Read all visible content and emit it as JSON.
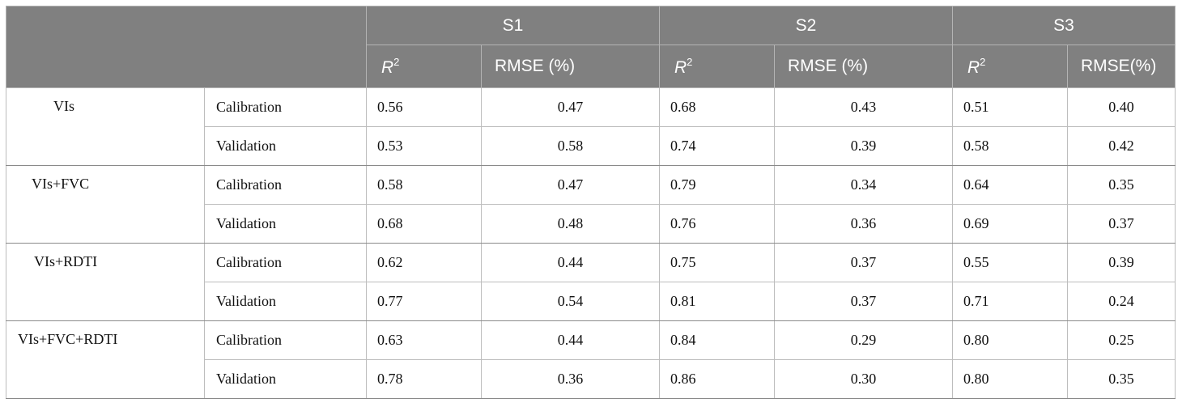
{
  "header": {
    "groups": [
      "S1",
      "S2",
      "S3"
    ],
    "subcols": [
      {
        "r2_base": "R",
        "r2_sup": "2",
        "rmse": "RMSE (%)"
      },
      {
        "r2_base": "R",
        "r2_sup": "2",
        "rmse": "RMSE (%)"
      },
      {
        "r2_base": "R",
        "r2_sup": "2",
        "rmse": "RMSE(%)"
      }
    ]
  },
  "rows": [
    {
      "model": "VIs",
      "phases": [
        {
          "phase": "Calibration",
          "values": [
            "0.56",
            "0.47",
            "0.68",
            "0.43",
            "0.51",
            "0.40"
          ]
        },
        {
          "phase": "Validation",
          "values": [
            "0.53",
            "0.58",
            "0.74",
            "0.39",
            "0.58",
            "0.42"
          ]
        }
      ]
    },
    {
      "model": "VIs+FVC",
      "phases": [
        {
          "phase": "Calibration",
          "values": [
            "0.58",
            "0.47",
            "0.79",
            "0.34",
            "0.64",
            "0.35"
          ]
        },
        {
          "phase": "Validation",
          "values": [
            "0.68",
            "0.48",
            "0.76",
            "0.36",
            "0.69",
            "0.37"
          ]
        }
      ]
    },
    {
      "model": "VIs+RDTI",
      "phases": [
        {
          "phase": "Calibration",
          "values": [
            "0.62",
            "0.44",
            "0.75",
            "0.37",
            "0.55",
            "0.39"
          ]
        },
        {
          "phase": "Validation",
          "values": [
            "0.77",
            "0.54",
            "0.81",
            "0.37",
            "0.71",
            "0.24"
          ]
        }
      ]
    },
    {
      "model": "VIs+FVC+RDTI",
      "phases": [
        {
          "phase": "Calibration",
          "values": [
            "0.63",
            "0.44",
            "0.84",
            "0.29",
            "0.80",
            "0.25"
          ]
        },
        {
          "phase": "Validation",
          "values": [
            "0.78",
            "0.36",
            "0.86",
            "0.30",
            "0.80",
            "0.35"
          ]
        }
      ]
    }
  ],
  "colors": {
    "header_bg": "#808080",
    "header_text": "#ffffff",
    "grid": "#bdbdbd"
  }
}
